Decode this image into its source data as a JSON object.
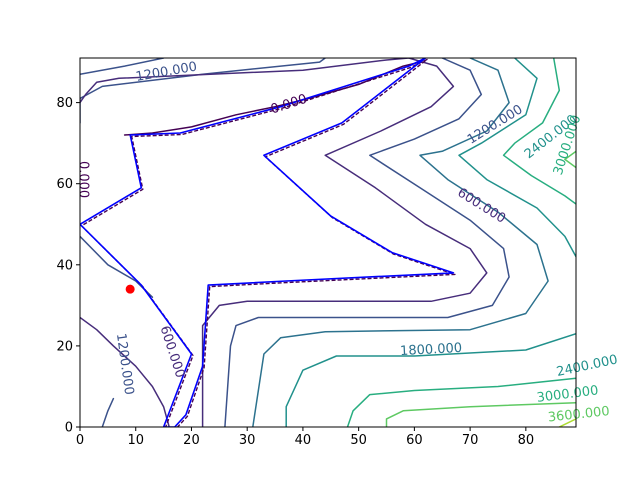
{
  "chart_data": {
    "type": "contour",
    "title": "",
    "xlabel": "",
    "ylabel": "",
    "xlim": [
      0,
      89
    ],
    "ylim": [
      0,
      91
    ],
    "x_ticks": [
      0,
      10,
      20,
      30,
      40,
      50,
      60,
      70,
      80
    ],
    "y_ticks": [
      0,
      20,
      40,
      60,
      80
    ],
    "x_tick_labels": [
      "0",
      "10",
      "20",
      "30",
      "40",
      "50",
      "60",
      "70",
      "80"
    ],
    "y_tick_labels": [
      "0",
      "20",
      "40",
      "60",
      "80"
    ],
    "grid": false,
    "colormap": "viridis",
    "contour_levels": [
      {
        "level": 0,
        "label": "0.000",
        "color": "#440154"
      },
      {
        "level": 600,
        "label": "600.000",
        "color": "#472d7b"
      },
      {
        "level": 1200,
        "label": "1200.000",
        "color": "#3b528b"
      },
      {
        "level": 1800,
        "label": "1800.000",
        "color": "#2c728e"
      },
      {
        "level": 2400,
        "label": "2400.000",
        "color": "#21918c"
      },
      {
        "level": 3000,
        "label": "3000.000",
        "color": "#28ae80"
      },
      {
        "level": 3600,
        "label": "3600.000",
        "color": "#5ec962"
      },
      {
        "level": 4200,
        "label": "",
        "color": "#addc30"
      }
    ],
    "contour_labels": [
      {
        "text": "1200.000",
        "x": 15.5,
        "y": 87.5,
        "angle": -10,
        "color": "#3b528b"
      },
      {
        "text": "0.000",
        "x": 37.5,
        "y": 79.5,
        "angle": -18,
        "color": "#440154"
      },
      {
        "text": "0.000",
        "x": 0.5,
        "y": 61.0,
        "angle": 90,
        "color": "#440154"
      },
      {
        "text": "1200.000",
        "x": 74.5,
        "y": 74.5,
        "angle": -32,
        "color": "#3b528b"
      },
      {
        "text": "2400.000",
        "x": 84.5,
        "y": 71.5,
        "angle": -38,
        "color": "#21918c"
      },
      {
        "text": "3000.000",
        "x": 87.5,
        "y": 69.5,
        "angle": -72,
        "color": "#28ae80"
      },
      {
        "text": "600.000",
        "x": 72.0,
        "y": 54.5,
        "angle": 32,
        "color": "#472d7b"
      },
      {
        "text": "600.000",
        "x": 16.5,
        "y": 18.5,
        "angle": 72,
        "color": "#472d7b"
      },
      {
        "text": "1200.000",
        "x": 8.0,
        "y": 15.5,
        "angle": 82,
        "color": "#3b528b"
      },
      {
        "text": "1800.000",
        "x": 63.0,
        "y": 19.0,
        "angle": -3,
        "color": "#2c728e"
      },
      {
        "text": "2400.000",
        "x": 91.0,
        "y": 15.0,
        "angle": -12,
        "color": "#21918c"
      },
      {
        "text": "3000.000",
        "x": 87.5,
        "y": 8.0,
        "angle": -7,
        "color": "#28ae80"
      },
      {
        "text": "3600.000",
        "x": 89.5,
        "y": 3.0,
        "angle": -6,
        "color": "#5ec962"
      }
    ],
    "contour_lines": [
      {
        "level": 1200,
        "points": [
          [
            0,
            75
          ],
          [
            0,
            81
          ],
          [
            4,
            84
          ],
          [
            22,
            87
          ],
          [
            43,
            90
          ],
          [
            44,
            91
          ]
        ]
      },
      {
        "level": 1200,
        "points": [
          [
            0,
            87
          ],
          [
            8,
            89
          ],
          [
            15,
            91
          ]
        ]
      },
      {
        "level": 0,
        "points": [
          [
            8,
            72
          ],
          [
            13,
            72.5
          ],
          [
            20,
            74
          ],
          [
            28,
            77
          ],
          [
            35,
            79
          ],
          [
            41,
            81
          ],
          [
            50,
            84.5
          ],
          [
            58,
            89
          ],
          [
            61,
            90
          ]
        ]
      },
      {
        "level": 600,
        "points": [
          [
            0,
            80
          ],
          [
            1,
            82
          ],
          [
            3,
            85
          ],
          [
            7,
            86
          ],
          [
            40,
            88
          ],
          [
            55,
            90.5
          ],
          [
            59,
            91
          ]
        ]
      },
      {
        "level": 600,
        "points": [
          [
            59,
            91
          ],
          [
            64,
            89
          ],
          [
            67,
            84
          ],
          [
            63,
            79
          ],
          [
            54,
            73
          ],
          [
            44,
            67
          ],
          [
            53,
            59
          ],
          [
            62,
            50
          ],
          [
            70,
            44
          ],
          [
            73,
            38
          ],
          [
            70,
            33
          ],
          [
            63,
            31
          ],
          [
            30,
            31
          ],
          [
            25,
            30
          ],
          [
            22,
            25
          ],
          [
            22,
            0
          ]
        ]
      },
      {
        "level": 1200,
        "points": [
          [
            65,
            91
          ],
          [
            70,
            88
          ],
          [
            72,
            82
          ],
          [
            68,
            76
          ],
          [
            60,
            71
          ],
          [
            52,
            67
          ],
          [
            61,
            59
          ],
          [
            70,
            51
          ],
          [
            76,
            44
          ],
          [
            77,
            37
          ],
          [
            74,
            30
          ],
          [
            66,
            27
          ],
          [
            32,
            27
          ],
          [
            28,
            25
          ],
          [
            27,
            20
          ],
          [
            26,
            0
          ]
        ]
      },
      {
        "level": 1800,
        "points": [
          [
            70,
            91
          ],
          [
            75,
            88
          ],
          [
            77,
            80
          ],
          [
            73,
            73
          ],
          [
            65,
            68
          ],
          [
            61,
            67
          ],
          [
            66,
            61
          ],
          [
            75,
            53
          ],
          [
            82,
            45
          ],
          [
            84,
            36
          ],
          [
            80,
            28
          ],
          [
            70,
            24
          ],
          [
            44,
            23.5
          ],
          [
            36,
            22
          ],
          [
            33,
            18
          ],
          [
            31,
            0
          ]
        ]
      },
      {
        "level": 2400,
        "points": [
          [
            78,
            91
          ],
          [
            82,
            86
          ],
          [
            80,
            77
          ],
          [
            72,
            70
          ],
          [
            68,
            67
          ],
          [
            73,
            61
          ],
          [
            82,
            54
          ],
          [
            87,
            47
          ],
          [
            89,
            42
          ]
        ]
      },
      {
        "level": 2400,
        "points": [
          [
            89,
            23
          ],
          [
            80,
            19
          ],
          [
            60,
            17.5
          ],
          [
            46,
            17.5
          ],
          [
            40,
            14
          ],
          [
            37,
            5
          ],
          [
            37,
            0
          ]
        ]
      },
      {
        "level": 3000,
        "points": [
          [
            85,
            91
          ],
          [
            86,
            83
          ],
          [
            83,
            75
          ],
          [
            78,
            70
          ],
          [
            76,
            67
          ],
          [
            81,
            62
          ],
          [
            87,
            57
          ],
          [
            89,
            55
          ]
        ]
      },
      {
        "level": 3000,
        "points": [
          [
            89,
            12
          ],
          [
            75,
            10
          ],
          [
            60,
            9
          ],
          [
            52,
            8
          ],
          [
            49,
            4
          ],
          [
            48,
            0
          ]
        ]
      },
      {
        "level": 3600,
        "points": [
          [
            89,
            68
          ],
          [
            87,
            66
          ],
          [
            89,
            64
          ]
        ]
      },
      {
        "level": 3600,
        "points": [
          [
            89,
            6
          ],
          [
            70,
            5
          ],
          [
            58,
            4
          ],
          [
            55,
            2
          ],
          [
            55,
            0
          ]
        ]
      },
      {
        "level": 4200,
        "points": [
          [
            86,
            0
          ],
          [
            89,
            2
          ]
        ]
      },
      {
        "level": 600,
        "points": [
          [
            0,
            27
          ],
          [
            3,
            24
          ],
          [
            6,
            20
          ],
          [
            10,
            15
          ],
          [
            13,
            10
          ],
          [
            15,
            5
          ],
          [
            16,
            0
          ]
        ]
      },
      {
        "level": 1200,
        "points": [
          [
            4,
            0
          ],
          [
            5,
            4
          ],
          [
            6,
            7
          ]
        ]
      },
      {
        "level": 1200,
        "points": [
          [
            0,
            47
          ],
          [
            5,
            40
          ],
          [
            10,
            36
          ],
          [
            13,
            32
          ]
        ]
      }
    ],
    "boundary_polygon": [
      [
        15,
        0
      ],
      [
        20,
        18
      ],
      [
        11,
        35
      ],
      [
        0,
        50
      ],
      [
        11,
        59
      ],
      [
        9,
        72
      ],
      [
        18,
        72.5
      ],
      [
        36,
        79
      ],
      [
        59,
        89
      ],
      [
        62,
        91
      ],
      [
        47,
        75
      ],
      [
        33,
        67
      ],
      [
        45,
        52
      ],
      [
        56,
        43
      ],
      [
        67,
        38
      ],
      [
        37,
        36
      ],
      [
        23,
        35
      ],
      [
        22,
        15
      ],
      [
        19,
        3
      ],
      [
        17,
        0
      ]
    ],
    "marker_point": {
      "x": 9,
      "y": 34,
      "color": "#ff0000"
    },
    "colors": {
      "boundary": "#0000ff",
      "marker": "#ff0000",
      "zero_contour": "#440154"
    }
  }
}
